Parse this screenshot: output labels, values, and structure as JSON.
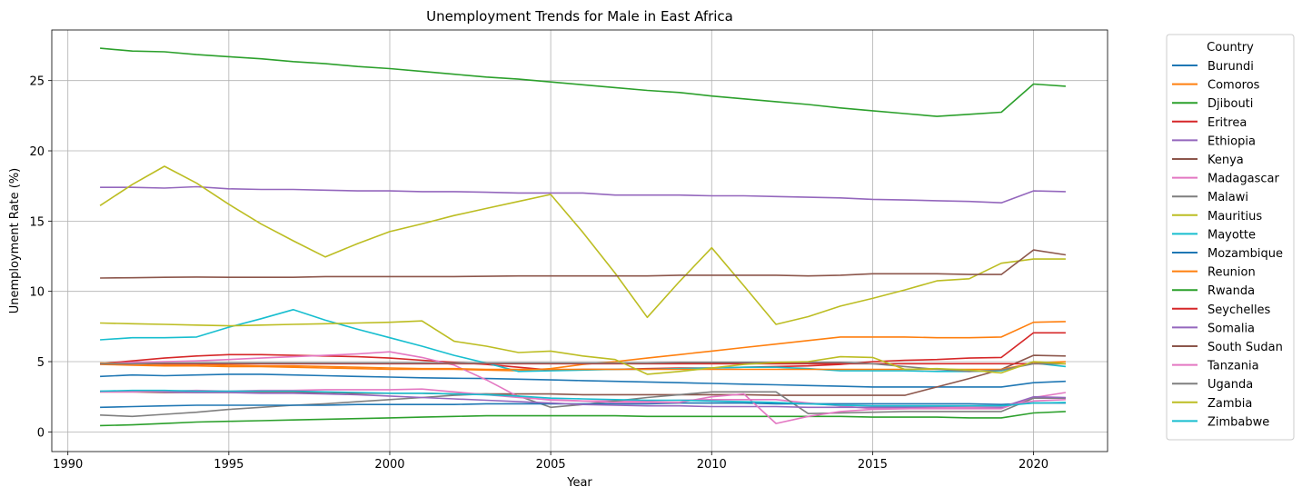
{
  "chart_data": {
    "type": "line",
    "title": "Unemployment Trends for Male in East Africa",
    "xlabel": "Year",
    "ylabel": "Unemployment Rate (%)",
    "xlim": [
      1989.5,
      2022.3
    ],
    "ylim": [
      -1.4,
      28.6
    ],
    "xticks": [
      1990,
      1995,
      2000,
      2005,
      2010,
      2015,
      2020
    ],
    "yticks": [
      0,
      5,
      10,
      15,
      20,
      25
    ],
    "grid": true,
    "legend": {
      "title": "Country",
      "placement": "outside-right"
    },
    "x": [
      1991,
      1992,
      1993,
      1994,
      1995,
      1996,
      1997,
      1998,
      1999,
      2000,
      2001,
      2002,
      2003,
      2004,
      2005,
      2006,
      2007,
      2008,
      2009,
      2010,
      2011,
      2012,
      2013,
      2014,
      2015,
      2016,
      2017,
      2018,
      2019,
      2020,
      2021
    ],
    "series": [
      {
        "name": "Burundi",
        "color": "#1f77b4",
        "values": [
          3.95,
          4.05,
          4.0,
          4.05,
          4.1,
          4.1,
          4.05,
          4.0,
          3.95,
          3.9,
          3.85,
          3.82,
          3.8,
          3.75,
          3.7,
          3.65,
          3.6,
          3.55,
          3.5,
          3.45,
          3.4,
          3.35,
          3.3,
          3.25,
          3.2,
          3.2,
          3.2,
          3.2,
          3.2,
          3.5,
          3.6
        ]
      },
      {
        "name": "Comoros",
        "color": "#ff7f0e",
        "values": [
          4.8,
          4.75,
          4.7,
          4.7,
          4.65,
          4.65,
          4.6,
          4.55,
          4.5,
          4.45,
          4.45,
          4.45,
          4.4,
          4.35,
          4.5,
          4.8,
          5.0,
          5.25,
          5.5,
          5.75,
          6.0,
          6.25,
          6.5,
          6.75,
          6.75,
          6.75,
          6.7,
          6.7,
          6.75,
          7.8,
          7.85
        ]
      },
      {
        "name": "Djibouti",
        "color": "#2ca02c",
        "values": [
          27.3,
          27.1,
          27.05,
          26.85,
          26.7,
          26.55,
          26.35,
          26.2,
          26.0,
          25.85,
          25.65,
          25.45,
          25.25,
          25.1,
          24.9,
          24.7,
          24.5,
          24.3,
          24.15,
          23.9,
          23.7,
          23.5,
          23.3,
          23.05,
          22.85,
          22.65,
          22.45,
          22.6,
          22.75,
          24.75,
          24.6
        ]
      },
      {
        "name": "Eritrea",
        "color": "#d62728",
        "values": [
          4.85,
          5.05,
          5.25,
          5.4,
          5.5,
          5.5,
          5.45,
          5.4,
          5.35,
          5.25,
          5.1,
          4.95,
          4.8,
          4.6,
          4.4,
          4.45,
          4.45,
          4.5,
          4.55,
          4.55,
          4.6,
          4.65,
          4.7,
          4.8,
          5.0,
          5.1,
          5.15,
          5.25,
          5.3,
          7.05,
          7.05
        ]
      },
      {
        "name": "Ethiopia",
        "color": "#9467bd",
        "values": [
          17.4,
          17.4,
          17.35,
          17.45,
          17.3,
          17.25,
          17.25,
          17.2,
          17.15,
          17.15,
          17.1,
          17.1,
          17.05,
          17.0,
          17.0,
          17.0,
          16.85,
          16.85,
          16.85,
          16.8,
          16.8,
          16.75,
          16.7,
          16.65,
          16.55,
          16.5,
          16.45,
          16.4,
          16.3,
          17.15,
          17.1
        ]
      },
      {
        "name": "Kenya",
        "color": "#8c564b",
        "values": [
          2.85,
          2.85,
          2.8,
          2.8,
          2.8,
          2.8,
          2.8,
          2.8,
          2.75,
          2.75,
          2.75,
          2.7,
          2.7,
          2.7,
          2.7,
          2.65,
          2.65,
          2.65,
          2.65,
          2.65,
          2.65,
          2.6,
          2.6,
          2.6,
          2.6,
          2.6,
          3.2,
          3.8,
          4.45,
          5.45,
          5.4
        ]
      },
      {
        "name": "Madagascar",
        "color": "#e377c2",
        "values": [
          4.85,
          4.95,
          5.0,
          5.05,
          5.15,
          5.25,
          5.35,
          5.45,
          5.55,
          5.7,
          5.3,
          4.75,
          3.7,
          2.5,
          2.25,
          2.2,
          2.2,
          2.2,
          2.25,
          2.3,
          2.3,
          2.3,
          2.05,
          1.85,
          1.65,
          1.65,
          1.65,
          1.65,
          1.65,
          2.45,
          2.8
        ]
      },
      {
        "name": "Malawi",
        "color": "#7f7f7f",
        "values": [
          1.2,
          1.1,
          1.25,
          1.4,
          1.6,
          1.75,
          1.9,
          2.0,
          2.15,
          2.3,
          2.45,
          2.6,
          2.7,
          2.55,
          1.75,
          1.95,
          2.2,
          2.45,
          2.65,
          2.85,
          2.85,
          2.85,
          1.3,
          1.35,
          1.4,
          1.45,
          1.45,
          1.45,
          1.45,
          2.4,
          2.4
        ]
      },
      {
        "name": "Mauritius",
        "color": "#bcbd22",
        "values": [
          16.1,
          17.6,
          18.9,
          17.7,
          16.2,
          14.8,
          13.6,
          12.45,
          13.4,
          14.25,
          14.8,
          15.4,
          15.9,
          16.4,
          16.9,
          14.2,
          11.3,
          8.15,
          10.7,
          13.1,
          10.4,
          7.65,
          8.2,
          8.95,
          9.5,
          10.1,
          10.75,
          10.9,
          12.0,
          12.3,
          12.3
        ]
      },
      {
        "name": "Mayotte",
        "color": "#17becf",
        "values": [
          6.55,
          6.7,
          6.7,
          6.75,
          7.45,
          8.05,
          8.7,
          7.95,
          7.3,
          6.7,
          6.1,
          5.45,
          4.9,
          4.3,
          4.35,
          4.4,
          4.45,
          4.45,
          4.5,
          4.55,
          4.6,
          4.6,
          4.5,
          4.35,
          4.35,
          4.35,
          4.3,
          4.3,
          4.35,
          4.9,
          4.65
        ]
      },
      {
        "name": "Mozambique",
        "color": "#1f77b4",
        "values": [
          1.75,
          1.8,
          1.85,
          1.9,
          1.9,
          1.9,
          1.9,
          1.9,
          1.95,
          1.95,
          1.95,
          1.95,
          2.0,
          2.0,
          2.0,
          2.0,
          2.0,
          2.0,
          2.05,
          2.05,
          2.05,
          2.0,
          2.0,
          2.0,
          2.0,
          2.0,
          2.0,
          2.0,
          1.95,
          2.05,
          2.05
        ]
      },
      {
        "name": "Reunion",
        "color": "#ff7f0e",
        "values": [
          4.9,
          4.85,
          4.8,
          4.8,
          4.75,
          4.7,
          4.7,
          4.65,
          4.6,
          4.55,
          4.5,
          4.5,
          4.45,
          4.45,
          4.45,
          4.45,
          4.45,
          4.45,
          4.45,
          4.45,
          4.45,
          4.45,
          4.45,
          4.45,
          4.45,
          4.45,
          4.45,
          4.45,
          4.45,
          4.9,
          5.0
        ]
      },
      {
        "name": "Rwanda",
        "color": "#2ca02c",
        "values": [
          0.45,
          0.5,
          0.6,
          0.7,
          0.75,
          0.8,
          0.85,
          0.9,
          0.95,
          1.0,
          1.05,
          1.1,
          1.15,
          1.15,
          1.15,
          1.15,
          1.15,
          1.1,
          1.1,
          1.1,
          1.1,
          1.1,
          1.1,
          1.1,
          1.05,
          1.05,
          1.05,
          1.0,
          1.0,
          1.35,
          1.45
        ]
      },
      {
        "name": "Seychelles",
        "color": "#d62728",
        "values": [
          4.85,
          4.85,
          4.85,
          4.85,
          4.85,
          4.85,
          4.85,
          4.85,
          4.85,
          4.85,
          4.85,
          4.85,
          4.85,
          4.85,
          4.85,
          4.85,
          4.85,
          4.85,
          4.85,
          4.85,
          4.85,
          4.85,
          4.85,
          4.85,
          4.85,
          4.85,
          4.85,
          4.85,
          4.85,
          4.85,
          4.85
        ]
      },
      {
        "name": "Somalia",
        "color": "#9467bd",
        "values": [
          2.9,
          2.9,
          2.85,
          2.8,
          2.8,
          2.75,
          2.75,
          2.7,
          2.65,
          2.55,
          2.45,
          2.35,
          2.25,
          2.15,
          2.05,
          1.95,
          1.9,
          1.85,
          1.85,
          1.8,
          1.8,
          1.8,
          1.75,
          1.75,
          1.75,
          1.75,
          1.75,
          1.75,
          1.75,
          2.5,
          2.45
        ]
      },
      {
        "name": "South Sudan",
        "color": "#8c564b",
        "values": [
          10.95,
          10.97,
          11.0,
          11.02,
          11.0,
          11.0,
          11.0,
          11.05,
          11.05,
          11.05,
          11.05,
          11.05,
          11.07,
          11.1,
          11.1,
          11.1,
          11.1,
          11.1,
          11.15,
          11.15,
          11.15,
          11.15,
          11.1,
          11.15,
          11.25,
          11.25,
          11.25,
          11.2,
          11.2,
          12.95,
          12.6
        ]
      },
      {
        "name": "Tanzania",
        "color": "#e377c2",
        "values": [
          2.85,
          2.85,
          2.9,
          2.95,
          2.9,
          2.95,
          2.95,
          3.0,
          3.0,
          3.0,
          3.05,
          2.85,
          2.65,
          2.45,
          2.3,
          2.2,
          2.1,
          2.1,
          2.1,
          2.5,
          2.7,
          0.6,
          1.1,
          1.45,
          1.6,
          1.65,
          1.7,
          1.75,
          1.8,
          2.2,
          2.3
        ]
      },
      {
        "name": "Uganda",
        "color": "#7f7f7f",
        "values": [
          4.85,
          4.85,
          4.9,
          4.9,
          4.9,
          4.9,
          4.9,
          4.9,
          4.9,
          4.9,
          4.9,
          4.9,
          4.9,
          4.9,
          4.9,
          4.9,
          4.9,
          4.9,
          4.95,
          4.95,
          4.95,
          4.95,
          4.95,
          4.95,
          4.85,
          4.65,
          4.45,
          4.3,
          4.4,
          4.85,
          4.85
        ]
      },
      {
        "name": "Zambia",
        "color": "#bcbd22",
        "values": [
          7.75,
          7.7,
          7.65,
          7.6,
          7.55,
          7.6,
          7.65,
          7.7,
          7.75,
          7.8,
          7.9,
          6.45,
          6.1,
          5.65,
          5.75,
          5.4,
          5.15,
          4.1,
          4.3,
          4.55,
          4.8,
          4.95,
          5.0,
          5.35,
          5.3,
          4.45,
          4.5,
          4.4,
          4.2,
          5.0,
          4.85
        ]
      },
      {
        "name": "Zimbabwe",
        "color": "#17becf",
        "values": [
          2.9,
          2.95,
          2.95,
          2.9,
          2.9,
          2.9,
          2.9,
          2.85,
          2.8,
          2.75,
          2.75,
          2.7,
          2.65,
          2.55,
          2.4,
          2.35,
          2.3,
          2.25,
          2.25,
          2.2,
          2.15,
          2.1,
          2.0,
          1.9,
          1.85,
          1.85,
          1.85,
          1.85,
          1.85,
          2.05,
          2.1
        ]
      }
    ]
  }
}
